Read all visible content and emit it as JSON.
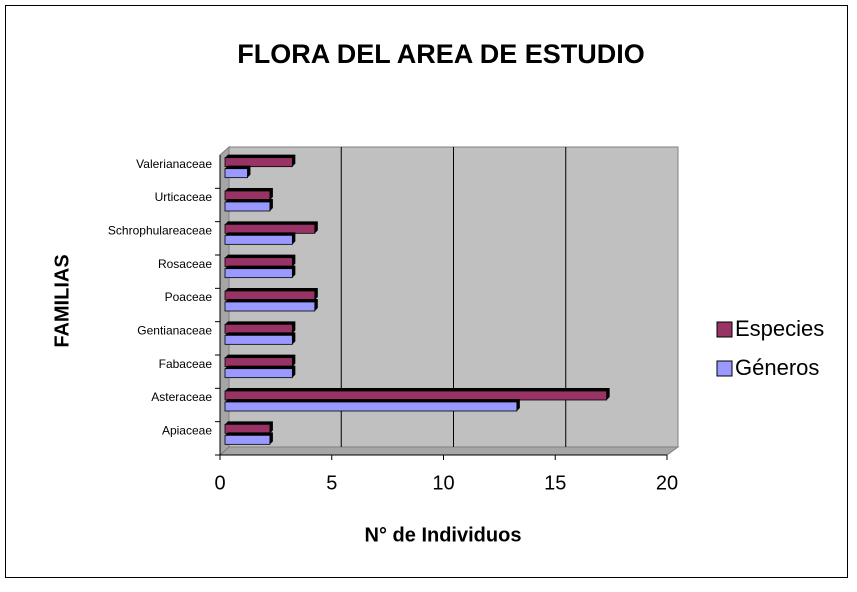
{
  "chart_data": {
    "type": "bar",
    "orientation": "horizontal",
    "title": "FLORA DEL AREA DE ESTUDIO",
    "x_label": "N° de Individuos",
    "y_label": "FAMILIAS",
    "categories": [
      "Apiaceae",
      "Asteraceae",
      "Fabaceae",
      "Gentianaceae",
      "Poaceae",
      "Rosaceae",
      "Schrophulareaceae",
      "Urticaceae",
      "Valerianaceae"
    ],
    "series": [
      {
        "name": "Especies",
        "color": "#993366",
        "values": [
          2,
          17,
          3,
          3,
          4,
          3,
          4,
          2,
          3
        ]
      },
      {
        "name": "Géneros",
        "color": "#9999ff",
        "values": [
          2,
          13,
          3,
          3,
          4,
          3,
          3,
          2,
          1
        ]
      }
    ],
    "xlim": [
      0,
      20
    ],
    "xticks": [
      0,
      5,
      10,
      15,
      20
    ],
    "grid": true,
    "legend": "right"
  }
}
